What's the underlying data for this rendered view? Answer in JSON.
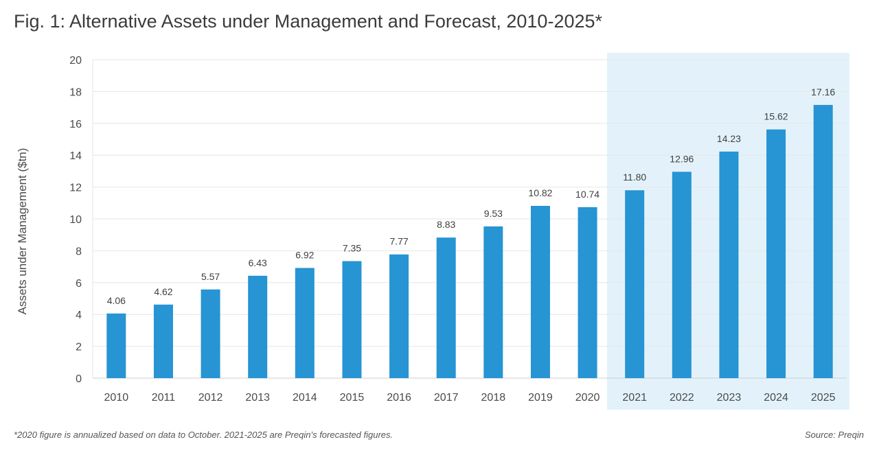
{
  "colors": {
    "bar": "#2794d3",
    "forecast_band": "#e3f2fa",
    "gridline": "#e6e6e6",
    "axis": "#cfcfcf",
    "text": "#4a4a4a",
    "data_label": "#3f3f3f"
  },
  "chart_data": {
    "type": "bar",
    "title": "Fig. 1: Alternative Assets under Management and Forecast, 2010-2025*",
    "xlabel": "",
    "ylabel": "Assets under Management ($tn)",
    "ylim": [
      0,
      20
    ],
    "yticks": [
      "0",
      "2",
      "4",
      "6",
      "8",
      "10",
      "12",
      "14",
      "16",
      "18",
      "20"
    ],
    "grid": true,
    "categories": [
      "2010",
      "2011",
      "2012",
      "2013",
      "2014",
      "2015",
      "2016",
      "2017",
      "2018",
      "2019",
      "2020",
      "2021",
      "2022",
      "2023",
      "2024",
      "2025"
    ],
    "values": [
      4.06,
      4.62,
      5.57,
      6.43,
      6.92,
      7.35,
      7.77,
      8.83,
      9.53,
      10.82,
      10.74,
      11.8,
      12.96,
      14.23,
      15.62,
      17.16
    ],
    "data_labels": [
      "4.06",
      "4.62",
      "5.57",
      "6.43",
      "6.92",
      "7.35",
      "7.77",
      "8.83",
      "9.53",
      "10.82",
      "10.74",
      "11.80",
      "12.96",
      "14.23",
      "15.62",
      "17.16"
    ],
    "forecast_highlight": {
      "from": "2021",
      "to": "2025"
    }
  },
  "footnote": "*2020 figure is annualized based on data to October. 2021-2025 are Preqin’s forecasted figures.",
  "source": "Source: Preqin"
}
